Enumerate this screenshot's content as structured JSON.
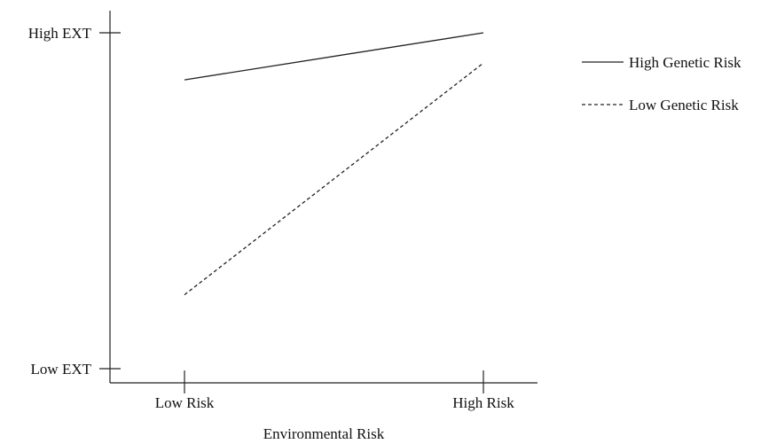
{
  "chart_data": {
    "type": "line",
    "title": "",
    "xlabel": "Environmental Risk",
    "ylabel": "",
    "categories": [
      "Low Risk",
      "High Risk"
    ],
    "y_tick_labels": [
      "High EXT",
      "Low EXT"
    ],
    "ylim": [
      0,
      100
    ],
    "grid": false,
    "legend_position": "top-right",
    "series": [
      {
        "name": "High Genetic Risk",
        "style": "solid",
        "color": "#222222",
        "values": [
          86,
          100
        ]
      },
      {
        "name": "Low Genetic Risk",
        "style": "dashed",
        "color": "#222222",
        "values": [
          22,
          91
        ]
      }
    ]
  }
}
